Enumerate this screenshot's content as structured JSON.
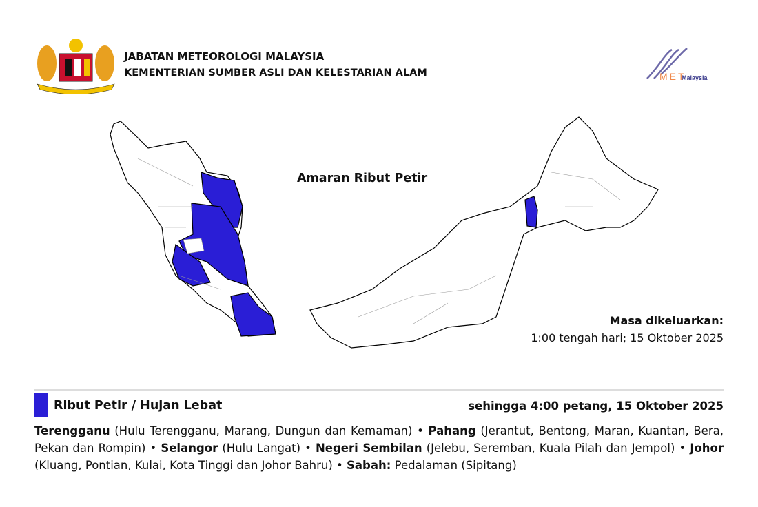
{
  "header": {
    "org_name": "JABATAN METEOROLOGI MALAYSIA",
    "ministry": "KEMENTERIAN SUMBER ASLI DAN KELESTARIAN ALAM",
    "crest_icon": "malaysia-coat-of-arms",
    "logo_text": "METMalaysia"
  },
  "map": {
    "title": "Amaran Ribut Petir",
    "warning_color": "#2a1ed6",
    "issued_label": "Masa dikeluarkan:",
    "issued_value": "1:00 tengah hari; 15 Oktober 2025"
  },
  "warning": {
    "type": "Ribut Petir / Hujan Lebat",
    "valid_until": "sehingga 4:00 petang, 15 Oktober 2025",
    "areas": [
      {
        "state": "Terengganu",
        "districts": "(Hulu Terengganu, Marang, Dungun dan Kemaman)"
      },
      {
        "state": "Pahang",
        "districts": "(Jerantut, Bentong, Maran, Kuantan, Bera, Pekan dan Rompin)"
      },
      {
        "state": "Selangor",
        "districts": "(Hulu Langat)"
      },
      {
        "state": "Negeri Sembilan",
        "districts": "(Jelebu, Seremban, Kuala Pilah dan Jempol)"
      },
      {
        "state": "Johor",
        "districts": "(Kluang, Pontian, Kulai, Kota Tinggi dan Johor Bahru)"
      },
      {
        "state": "Sabah:",
        "districts": "Pedalaman (Sipitang)"
      }
    ],
    "separator": "•"
  }
}
